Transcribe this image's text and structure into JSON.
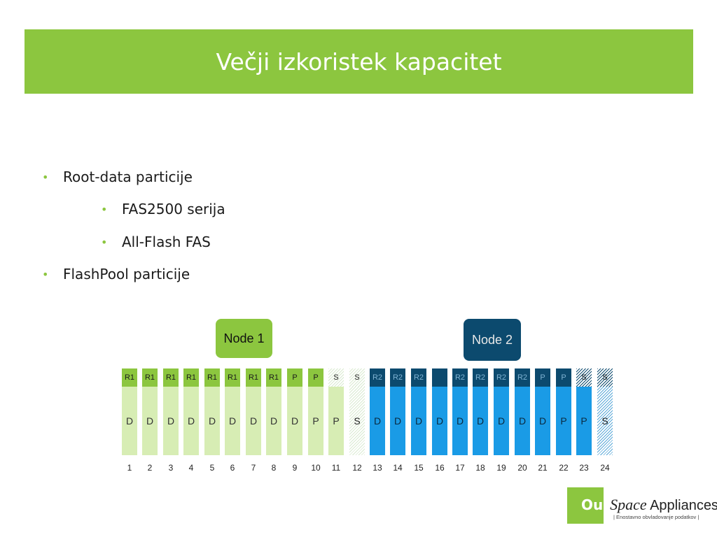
{
  "title": "Večji izkoristek kapacitet",
  "bullets": [
    {
      "text": "Root-data particije",
      "level": 1
    },
    {
      "text": "FAS2500 serija",
      "level": 2
    },
    {
      "text": "All-Flash FAS",
      "level": 2
    },
    {
      "text": "FlashPool particije",
      "level": 1
    }
  ],
  "nodes": [
    {
      "label": "Node 1",
      "color": "#8cc63f",
      "text_color": "#111111"
    },
    {
      "label": "Node 2",
      "color": "#0c4a6e",
      "text_color": "#e8e8e8"
    }
  ],
  "colors": {
    "accent_green": "#8cc63f",
    "green_top": "#8cc63f",
    "green_body": "#d7edb4",
    "blue_top": "#0c4a6e",
    "blue_body": "#1a9be6"
  },
  "disks": [
    {
      "n": "1",
      "top": "R1",
      "body": "D",
      "group": "green"
    },
    {
      "n": "2",
      "top": "R1",
      "body": "D",
      "group": "green"
    },
    {
      "n": "3",
      "top": "R1",
      "body": "D",
      "group": "green"
    },
    {
      "n": "4",
      "top": "R1",
      "body": "D",
      "group": "green"
    },
    {
      "n": "5",
      "top": "R1",
      "body": "D",
      "group": "green"
    },
    {
      "n": "6",
      "top": "R1",
      "body": "D",
      "group": "green"
    },
    {
      "n": "7",
      "top": "R1",
      "body": "D",
      "group": "green"
    },
    {
      "n": "8",
      "top": "R1",
      "body": "D",
      "group": "green"
    },
    {
      "n": "9",
      "top": "P",
      "body": "D",
      "group": "green"
    },
    {
      "n": "10",
      "top": "P",
      "body": "P",
      "group": "green"
    },
    {
      "n": "11",
      "top": "S",
      "body": "P",
      "group": "green",
      "hatch_top": true
    },
    {
      "n": "12",
      "top": "S",
      "body": "S",
      "group": "green",
      "hatch_top": true,
      "hatch_body": true
    },
    {
      "n": "13",
      "top": "R2",
      "body": "D",
      "group": "blue"
    },
    {
      "n": "14",
      "top": "R2",
      "body": "D",
      "group": "blue"
    },
    {
      "n": "15",
      "top": "R2",
      "body": "D",
      "group": "blue"
    },
    {
      "n": "16",
      "top": "",
      "body": "D",
      "group": "blue"
    },
    {
      "n": "17",
      "top": "R2",
      "body": "D",
      "group": "blue"
    },
    {
      "n": "18",
      "top": "R2",
      "body": "D",
      "group": "blue"
    },
    {
      "n": "19",
      "top": "R2",
      "body": "D",
      "group": "blue"
    },
    {
      "n": "20",
      "top": "R2",
      "body": "D",
      "group": "blue"
    },
    {
      "n": "21",
      "top": "P",
      "body": "D",
      "group": "blue"
    },
    {
      "n": "22",
      "top": "P",
      "body": "P",
      "group": "blue"
    },
    {
      "n": "23",
      "top": "S",
      "body": "P",
      "group": "blue",
      "hatch_top": true
    },
    {
      "n": "24",
      "top": "S",
      "body": "S",
      "group": "blue",
      "hatch_top": true,
      "hatch_body": true
    }
  ],
  "logo": {
    "brand_prefix": "Our",
    "brand_italic": "Space",
    "brand_suffix": " Appliances",
    "tagline": "| Enostavno obvladovanje podatkov |"
  }
}
